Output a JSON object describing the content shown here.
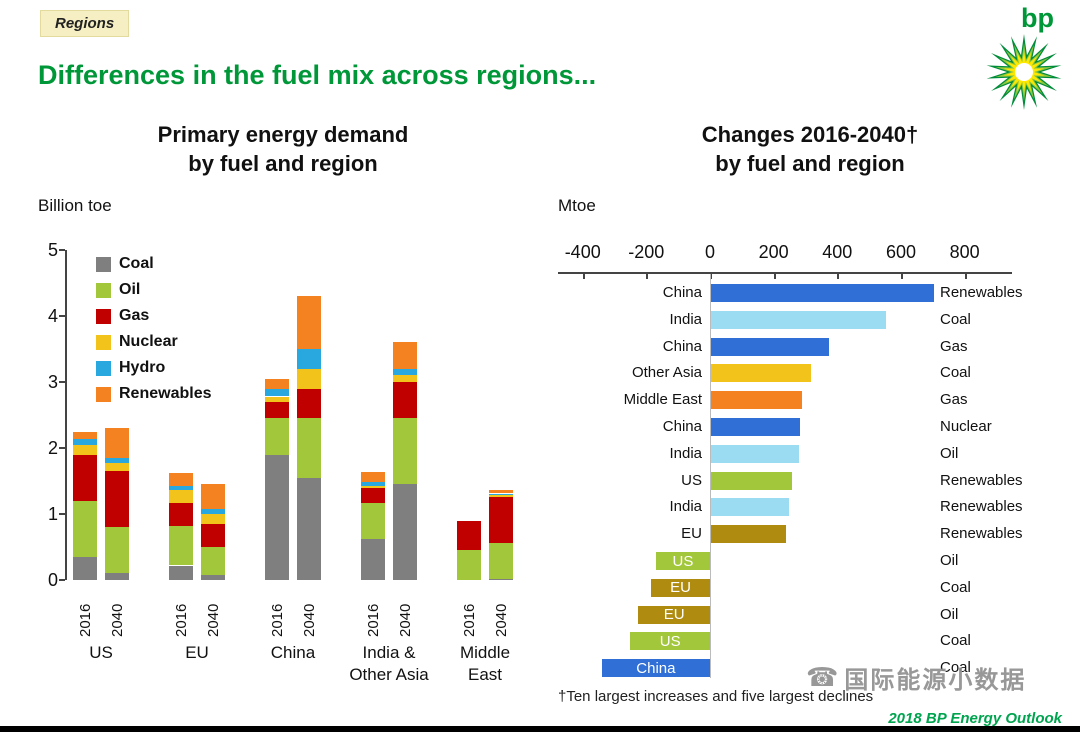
{
  "header": {
    "tag_label": "Regions",
    "title": "Differences in the fuel mix across regions...",
    "logo_text": "bp"
  },
  "left_chart": {
    "title_line1": "Primary energy demand",
    "title_line2": "by fuel and region",
    "unit_label": "Billion toe"
  },
  "right_chart": {
    "title_line1": "Changes 2016-2040†",
    "title_line2": "by fuel and region",
    "unit_label": "Mtoe",
    "footnote": "†Ten largest increases and five largest declines"
  },
  "footer": {
    "watermark_text": "国际能源小数据",
    "credit": "2018 BP Energy Outlook"
  },
  "colors": {
    "brand_green": "#009739",
    "credit_green": "#00A44F",
    "tag_bg": "#F6EFC3"
  },
  "chart_data": [
    {
      "type": "bar",
      "stacked": true,
      "title": "Primary energy demand by fuel and region",
      "ylabel": "Billion toe",
      "ylim": [
        0,
        5
      ],
      "y_ticks": [
        0,
        1,
        2,
        3,
        4,
        5
      ],
      "legend_position": "top-left-inside",
      "fuel_order": [
        "Coal",
        "Oil",
        "Gas",
        "Nuclear",
        "Hydro",
        "Renewables"
      ],
      "fuel_colors": {
        "Coal": "#7F7F7F",
        "Oil": "#A2C73B",
        "Gas": "#C00000",
        "Nuclear": "#F2C31B",
        "Hydro": "#29A8DF",
        "Renewables": "#F58220"
      },
      "categories": [
        {
          "label": "US",
          "label_lines": [
            "US"
          ],
          "bars": [
            {
              "year": "2016",
              "values": {
                "Coal": 0.35,
                "Oil": 0.85,
                "Gas": 0.7,
                "Nuclear": 0.15,
                "Hydro": 0.08,
                "Renewables": 0.12
              }
            },
            {
              "year": "2040",
              "values": {
                "Coal": 0.1,
                "Oil": 0.7,
                "Gas": 0.85,
                "Nuclear": 0.12,
                "Hydro": 0.08,
                "Renewables": 0.45
              }
            }
          ]
        },
        {
          "label": "EU",
          "label_lines": [
            "EU"
          ],
          "bars": [
            {
              "year": "2016",
              "values": {
                "Coal": 0.22,
                "Oil": 0.6,
                "Gas": 0.35,
                "Nuclear": 0.2,
                "Hydro": 0.05,
                "Renewables": 0.2
              }
            },
            {
              "year": "2040",
              "values": {
                "Coal": 0.08,
                "Oil": 0.42,
                "Gas": 0.35,
                "Nuclear": 0.15,
                "Hydro": 0.07,
                "Renewables": 0.38
              }
            }
          ]
        },
        {
          "label": "China",
          "label_lines": [
            "China"
          ],
          "bars": [
            {
              "year": "2016",
              "values": {
                "Coal": 1.9,
                "Oil": 0.55,
                "Gas": 0.25,
                "Nuclear": 0.08,
                "Hydro": 0.12,
                "Renewables": 0.15
              }
            },
            {
              "year": "2040",
              "values": {
                "Coal": 1.55,
                "Oil": 0.9,
                "Gas": 0.45,
                "Nuclear": 0.3,
                "Hydro": 0.3,
                "Renewables": 0.8
              }
            }
          ]
        },
        {
          "label": "India & Other Asia",
          "label_lines": [
            "India &",
            "Other Asia"
          ],
          "bars": [
            {
              "year": "2016",
              "values": {
                "Coal": 0.62,
                "Oil": 0.55,
                "Gas": 0.22,
                "Nuclear": 0.03,
                "Hydro": 0.06,
                "Renewables": 0.15
              }
            },
            {
              "year": "2040",
              "values": {
                "Coal": 1.45,
                "Oil": 1.0,
                "Gas": 0.55,
                "Nuclear": 0.1,
                "Hydro": 0.1,
                "Renewables": 0.4
              }
            }
          ]
        },
        {
          "label": "Middle East",
          "label_lines": [
            "Middle",
            "East"
          ],
          "bars": [
            {
              "year": "2016",
              "values": {
                "Coal": 0.0,
                "Oil": 0.45,
                "Gas": 0.45,
                "Nuclear": 0.0,
                "Hydro": 0.0,
                "Renewables": 0.0
              }
            },
            {
              "year": "2040",
              "values": {
                "Coal": 0.01,
                "Oil": 0.55,
                "Gas": 0.7,
                "Nuclear": 0.04,
                "Hydro": 0.01,
                "Renewables": 0.05
              }
            }
          ]
        }
      ]
    },
    {
      "type": "bar",
      "orientation": "horizontal",
      "title": "Changes 2016-2040 by fuel and region",
      "xlabel": "Mtoe",
      "xlim": [
        -400,
        800
      ],
      "x_ticks": [
        -400,
        -200,
        0,
        200,
        400,
        600,
        800
      ],
      "region_colors": {
        "China": "#2F6FD6",
        "India": "#9BDCF2",
        "Other Asia": "#F2C31B",
        "Middle East": "#F58220",
        "US": "#A2C73B",
        "EU": "#AF8C10"
      },
      "rows": [
        {
          "region": "China",
          "fuel": "Renewables",
          "value": 700
        },
        {
          "region": "India",
          "fuel": "Coal",
          "value": 550
        },
        {
          "region": "China",
          "fuel": "Gas",
          "value": 370
        },
        {
          "region": "Other Asia",
          "fuel": "Coal",
          "value": 315
        },
        {
          "region": "Middle East",
          "fuel": "Gas",
          "value": 285
        },
        {
          "region": "China",
          "fuel": "Nuclear",
          "value": 280
        },
        {
          "region": "India",
          "fuel": "Oil",
          "value": 275
        },
        {
          "region": "US",
          "fuel": "Renewables",
          "value": 255
        },
        {
          "region": "India",
          "fuel": "Renewables",
          "value": 245
        },
        {
          "region": "EU",
          "fuel": "Renewables",
          "value": 235
        },
        {
          "region": "US",
          "fuel": "Oil",
          "value": -170
        },
        {
          "region": "EU",
          "fuel": "Coal",
          "value": -185
        },
        {
          "region": "EU",
          "fuel": "Oil",
          "value": -225
        },
        {
          "region": "US",
          "fuel": "Coal",
          "value": -250
        },
        {
          "region": "China",
          "fuel": "Coal",
          "value": -340
        }
      ],
      "footnote": "†Ten largest increases and five largest declines"
    }
  ]
}
